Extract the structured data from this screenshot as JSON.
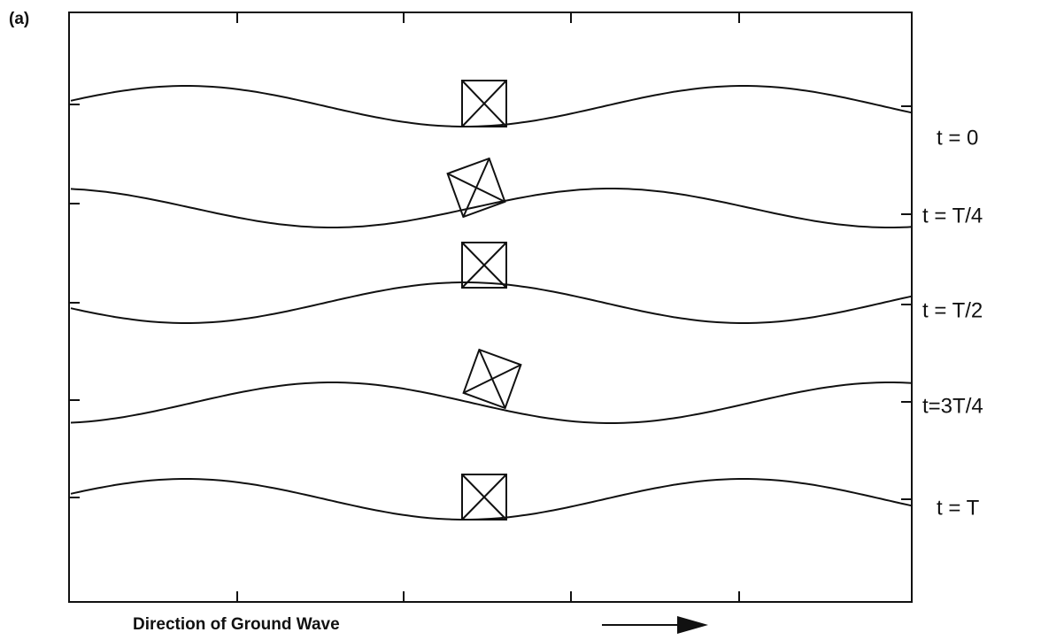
{
  "panel_label": "(a)",
  "labels": [
    "t = 0",
    "t = T/4",
    "t = T/2",
    "t=3T/4",
    "t = T"
  ],
  "caption": "Direction of Ground Wave"
}
